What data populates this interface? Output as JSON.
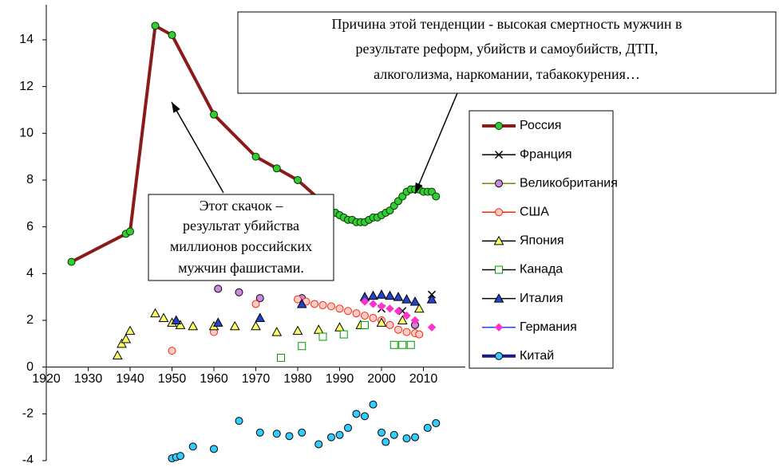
{
  "chart_data": {
    "type": "line",
    "xlim": [
      1920,
      2020
    ],
    "xticks": [
      1920,
      1930,
      1940,
      1950,
      1960,
      1970,
      1980,
      1990,
      2000,
      2010
    ],
    "ylim": [
      -4,
      15.5
    ],
    "yticks": [
      -4,
      -2,
      0,
      2,
      4,
      6,
      8,
      10,
      12,
      14
    ],
    "annotations": [
      {
        "lines": [
          "Причина этой тенденции  - высокая смертность мужчин в",
          "результате реформ, убийств и самоубийств, ДТП,",
          "алкоголизма, наркомании, табакокурения…"
        ]
      },
      {
        "lines": [
          "Этот скачок –",
          "результат убийства",
          "миллионов российских",
          "мужчин  фашистами."
        ]
      }
    ],
    "series": [
      {
        "name": "Россия",
        "color": "#8b1a1a",
        "marker": "circle",
        "marker_color": "#33cc33",
        "line": true,
        "x": [
          1926,
          1939,
          1940,
          1946,
          1950,
          1960,
          1970,
          1975,
          1980,
          1985,
          1989,
          1990,
          1991,
          1992,
          1993,
          1994,
          1995,
          1996,
          1997,
          1998,
          1999,
          2000,
          2001,
          2002,
          2003,
          2004,
          2005,
          2006,
          2007,
          2008,
          2009,
          2010,
          2011,
          2012,
          2013
        ],
        "values": [
          4.5,
          5.7,
          5.8,
          14.6,
          14.2,
          10.8,
          9.0,
          8.5,
          8.0,
          7.2,
          6.6,
          6.5,
          6.4,
          6.3,
          6.3,
          6.2,
          6.2,
          6.2,
          6.3,
          6.4,
          6.4,
          6.5,
          6.6,
          6.7,
          6.9,
          7.1,
          7.3,
          7.5,
          7.6,
          7.6,
          7.6,
          7.5,
          7.5,
          7.5,
          7.3
        ]
      },
      {
        "name": "Франция",
        "color": "#000000",
        "marker": "x",
        "marker_color": "#000000",
        "x": [
          2000,
          2005,
          2012
        ],
        "values": [
          2.5,
          2.4,
          3.1
        ]
      },
      {
        "name": "Великобритания",
        "color": "#808000",
        "marker": "circle",
        "marker_color": "#cc88dd",
        "x": [
          1961,
          1966,
          1971,
          1981,
          2008
        ],
        "values": [
          3.35,
          3.2,
          2.95,
          2.95,
          1.8
        ]
      },
      {
        "name": "США",
        "color": "#ff2200",
        "marker": "circle",
        "marker_color": "#ffcccc",
        "x": [
          1950,
          1960,
          1970,
          1980,
          1982,
          1984,
          1986,
          1988,
          1990,
          1992,
          1994,
          1996,
          1998,
          2000,
          2002,
          2004,
          2006,
          2008,
          2009
        ],
        "values": [
          0.7,
          1.5,
          2.7,
          2.9,
          2.8,
          2.7,
          2.65,
          2.6,
          2.5,
          2.4,
          2.3,
          2.2,
          2.1,
          2.0,
          1.8,
          1.6,
          1.5,
          1.45,
          1.4
        ]
      },
      {
        "name": "Япония",
        "color": "#000000",
        "marker": "triangle",
        "marker_color": "#ffff66",
        "x": [
          1937,
          1938,
          1939,
          1940,
          1946,
          1948,
          1950,
          1952,
          1955,
          1960,
          1965,
          1970,
          1975,
          1980,
          1985,
          1990,
          1995,
          2000,
          2005,
          2009
        ],
        "values": [
          0.5,
          1.0,
          1.2,
          1.55,
          2.3,
          2.1,
          1.9,
          1.8,
          1.75,
          1.75,
          1.75,
          1.75,
          1.5,
          1.55,
          1.6,
          1.7,
          1.8,
          1.9,
          2.0,
          2.5
        ]
      },
      {
        "name": "Канада",
        "color": "#000000",
        "marker": "square",
        "marker_color": "#ffffff",
        "marker_edge": "#009900",
        "x": [
          1976,
          1981,
          1986,
          1991,
          1996,
          2003,
          2005,
          2007
        ],
        "values": [
          0.4,
          0.9,
          1.3,
          1.4,
          1.8,
          0.95,
          0.95,
          0.95
        ]
      },
      {
        "name": "Италия",
        "color": "#000000",
        "marker": "triangle",
        "marker_color": "#2244cc",
        "x": [
          1951,
          1961,
          1971,
          1981,
          1996,
          1998,
          2000,
          2002,
          2004,
          2006,
          2008,
          2012
        ],
        "values": [
          2.0,
          1.9,
          2.1,
          2.7,
          3.0,
          3.05,
          3.1,
          3.05,
          3.0,
          2.9,
          2.8,
          2.9
        ]
      },
      {
        "name": "Германия",
        "color": "#2244ee",
        "marker": "diamond",
        "marker_color": "#ff33cc",
        "x": [
          1996,
          1998,
          2000,
          2002,
          2004,
          2006,
          2008,
          2012
        ],
        "values": [
          2.8,
          2.7,
          2.6,
          2.5,
          2.4,
          2.2,
          2.0,
          1.7
        ]
      },
      {
        "name": "Китай",
        "color": "#1a1a80",
        "marker": "circle",
        "marker_color": "#33ccff",
        "x": [
          1950,
          1951,
          1952,
          1955,
          1960,
          1966,
          1971,
          1975,
          1978,
          1981,
          1985,
          1988,
          1990,
          1992,
          1994,
          1996,
          1998,
          2000,
          2001,
          2003,
          2006,
          2008,
          2011,
          2013
        ],
        "values": [
          -3.9,
          -3.85,
          -3.8,
          -3.4,
          -3.5,
          -2.3,
          -2.8,
          -2.85,
          -2.95,
          -2.8,
          -3.3,
          -3.0,
          -2.9,
          -2.6,
          -2.0,
          -2.1,
          -1.6,
          -2.8,
          -3.2,
          -2.9,
          -3.05,
          -3.0,
          -2.6,
          -2.4
        ]
      }
    ]
  }
}
